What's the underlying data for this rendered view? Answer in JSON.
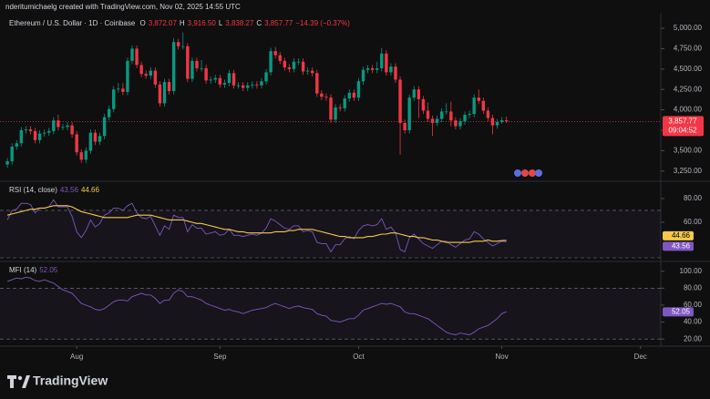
{
  "header": {
    "credit": "nderitumichaelg created with TradingView.com, Nov 02, 2025 14:55 UTC"
  },
  "branding": "TradingView",
  "chart_data": [
    {
      "type": "candlestick",
      "title": "Ethereum / U.S. Dollar · 1D · Coinbase",
      "ohlc_labels": [
        [
          "O",
          "3,872.07"
        ],
        [
          "H",
          "3,916.50"
        ],
        [
          "L",
          "3,838.27"
        ],
        [
          "C",
          "3,857.77"
        ]
      ],
      "change": "−14.39 (−0.37%)",
      "up_color": "#089981",
      "down_color": "#f23645",
      "open": [
        3330,
        3370,
        3550,
        3590,
        3750,
        3760,
        3740,
        3630,
        3710,
        3720,
        3740,
        3870,
        3790,
        3790,
        3810,
        3700,
        3480,
        3390,
        3500,
        3720,
        3610,
        3680,
        3910,
        4010,
        4250,
        4260,
        4220,
        4600,
        4750,
        4550,
        4440,
        4420,
        4480,
        4310,
        4080,
        4340,
        4230,
        4830,
        4780,
        4780,
        4380,
        4600,
        4510,
        4510,
        4360,
        4370,
        4390,
        4310,
        4330,
        4450,
        4300,
        4300,
        4270,
        4300,
        4310,
        4300,
        4350,
        4460,
        4720,
        4670,
        4600,
        4520,
        4500,
        4590,
        4590,
        4470,
        4480,
        4450,
        4200,
        4160,
        4150,
        3880,
        4030,
        4020,
        4140,
        4210,
        4150,
        4350,
        4490,
        4510,
        4490,
        4510,
        4690,
        4460,
        4530,
        4370,
        3840,
        3750,
        4150,
        4250,
        4130,
        3990,
        3890,
        3840,
        3890,
        3980,
        3980,
        3870,
        3800,
        3860,
        3940,
        3950,
        4150,
        4110,
        3990,
        3900,
        3810,
        3850,
        3872.07
      ],
      "high": [
        3410,
        3590,
        3630,
        3790,
        3800,
        3800,
        3780,
        3750,
        3760,
        3780,
        3910,
        3940,
        3830,
        3850,
        3850,
        3740,
        3520,
        3540,
        3760,
        3760,
        3720,
        3950,
        4050,
        4290,
        4330,
        4330,
        4640,
        4790,
        4790,
        4590,
        4480,
        4520,
        4520,
        4350,
        4380,
        4380,
        4880,
        4870,
        4950,
        4820,
        4640,
        4640,
        4610,
        4550,
        4410,
        4430,
        4430,
        4370,
        4490,
        4490,
        4340,
        4340,
        4340,
        4350,
        4350,
        4390,
        4500,
        4760,
        4770,
        4710,
        4640,
        4560,
        4630,
        4630,
        4630,
        4520,
        4520,
        4490,
        4240,
        4200,
        4190,
        4070,
        4070,
        4180,
        4250,
        4250,
        4390,
        4530,
        4550,
        4550,
        4590,
        4760,
        4730,
        4570,
        4570,
        4410,
        3880,
        4190,
        4290,
        4290,
        4170,
        4090,
        3930,
        3930,
        4020,
        4080,
        4100,
        3910,
        3900,
        3980,
        3990,
        4190,
        4250,
        4150,
        4030,
        3940,
        3890,
        3910,
        3916.5
      ],
      "low": [
        3290,
        3330,
        3510,
        3550,
        3710,
        3700,
        3590,
        3590,
        3670,
        3680,
        3700,
        3750,
        3750,
        3750,
        3660,
        3440,
        3350,
        3350,
        3460,
        3570,
        3570,
        3640,
        3870,
        3970,
        4210,
        4180,
        4180,
        4560,
        4510,
        4400,
        4380,
        4380,
        4270,
        4040,
        4040,
        4190,
        4190,
        4740,
        4740,
        4340,
        4340,
        4470,
        4470,
        4320,
        4320,
        4330,
        4270,
        4270,
        4290,
        4260,
        4260,
        4230,
        4230,
        4260,
        4260,
        4260,
        4310,
        4420,
        4630,
        4560,
        4480,
        4460,
        4460,
        4550,
        4430,
        4430,
        4410,
        4160,
        4120,
        4110,
        3840,
        3840,
        3980,
        3980,
        4100,
        4110,
        4110,
        4310,
        4450,
        4450,
        4450,
        4470,
        4420,
        4420,
        4330,
        3450,
        3710,
        3710,
        4110,
        3900,
        3950,
        3850,
        3680,
        3800,
        3850,
        3940,
        3800,
        3760,
        3760,
        3820,
        3900,
        3910,
        4070,
        3950,
        3860,
        3700,
        3770,
        3830,
        3838.27
      ],
      "close": [
        3370,
        3550,
        3590,
        3750,
        3760,
        3740,
        3630,
        3710,
        3720,
        3740,
        3870,
        3790,
        3790,
        3810,
        3700,
        3480,
        3390,
        3500,
        3720,
        3610,
        3680,
        3910,
        4010,
        4250,
        4260,
        4220,
        4600,
        4750,
        4550,
        4440,
        4420,
        4480,
        4310,
        4080,
        4340,
        4230,
        4830,
        4780,
        4780,
        4380,
        4600,
        4510,
        4510,
        4360,
        4370,
        4390,
        4310,
        4330,
        4450,
        4300,
        4300,
        4270,
        4300,
        4310,
        4300,
        4350,
        4460,
        4720,
        4670,
        4600,
        4520,
        4500,
        4590,
        4590,
        4470,
        4480,
        4450,
        4200,
        4160,
        4150,
        3880,
        4030,
        4020,
        4140,
        4210,
        4150,
        4350,
        4490,
        4510,
        4490,
        4510,
        4690,
        4460,
        4530,
        4370,
        3840,
        3750,
        4150,
        4250,
        4130,
        3990,
        3890,
        3840,
        3890,
        3980,
        3980,
        3870,
        3800,
        3860,
        3940,
        3950,
        4150,
        4110,
        3990,
        3900,
        3810,
        3850,
        3872,
        3857.77
      ],
      "last_label": "3,857.77",
      "countdown": "09:04:52",
      "xlim": [
        -1.6,
        141.4
      ],
      "ylim": [
        3136,
        5123
      ],
      "yticks": [
        {
          "value": 3250,
          "label": "3,250.00"
        },
        {
          "value": 3500,
          "label": "3,500.00"
        },
        {
          "value": 3750,
          "label": "3,750.00"
        },
        {
          "value": 4000,
          "label": "4,000.00"
        },
        {
          "value": 4250,
          "label": "4,250.00"
        },
        {
          "value": 4500,
          "label": "4,500.00"
        },
        {
          "value": 4750,
          "label": "4,750.00"
        },
        {
          "value": 5000,
          "label": "5,000.00"
        }
      ]
    },
    {
      "type": "line",
      "title": "RSI (14, close)",
      "series": [
        {
          "color": "#7e57c2",
          "values": [
            62,
            70,
            71,
            76,
            76,
            75,
            68,
            72,
            72,
            73,
            79,
            73,
            73,
            73,
            65,
            52,
            47,
            53,
            62,
            56,
            59,
            66,
            68,
            72,
            72,
            70,
            74,
            76,
            68,
            64,
            63,
            65,
            57,
            49,
            57,
            54,
            66,
            64,
            64,
            52,
            58,
            55,
            55,
            50,
            51,
            52,
            49,
            50,
            54,
            49,
            49,
            48,
            49,
            50,
            49,
            51,
            55,
            63,
            61,
            58,
            55,
            54,
            57,
            57,
            52,
            53,
            52,
            43,
            42,
            42,
            35,
            41,
            41,
            46,
            48,
            46,
            53,
            57,
            58,
            57,
            58,
            63,
            54,
            56,
            51,
            37,
            35,
            47,
            50,
            46,
            42,
            40,
            38,
            41,
            44,
            44,
            41,
            39,
            42,
            45,
            46,
            52,
            50,
            46,
            43,
            40,
            42,
            44,
            43.56
          ]
        },
        {
          "color": "#f7c948",
          "values": [
            66,
            67,
            68,
            69,
            70,
            71,
            71,
            72,
            72,
            73,
            74,
            74,
            74,
            74,
            73,
            71,
            69,
            68,
            67,
            66,
            65,
            64,
            64,
            64,
            64,
            64,
            64,
            65,
            66,
            66,
            66,
            66,
            65,
            64,
            63,
            62,
            62,
            62,
            62,
            61,
            60,
            59,
            59,
            58,
            57,
            56,
            55,
            54,
            54,
            53,
            52,
            52,
            51,
            51,
            51,
            51,
            51,
            51,
            52,
            52,
            52,
            53,
            53,
            54,
            54,
            54,
            54,
            53,
            52,
            51,
            50,
            49,
            48,
            48,
            47,
            47,
            47,
            47,
            48,
            48,
            49,
            50,
            50,
            51,
            51,
            50,
            49,
            48,
            48,
            47,
            47,
            46,
            45,
            45,
            44,
            43,
            43,
            43,
            43,
            43,
            43,
            44,
            44,
            44,
            45,
            44,
            44,
            44.5,
            44.66
          ]
        }
      ],
      "band": [
        30,
        70
      ],
      "xlim": [
        -1.6,
        141.4
      ],
      "ylim": [
        27.7,
        93.8
      ],
      "yticks": [
        {
          "value": 60,
          "label": "60.00"
        },
        {
          "value": 80,
          "label": "80.00"
        }
      ]
    },
    {
      "type": "line",
      "title": "MFI (14)",
      "series": [
        {
          "color": "#7e57c2",
          "values": [
            88,
            90,
            92,
            91,
            93,
            92,
            89,
            88,
            90,
            88,
            86,
            82,
            78,
            76,
            74,
            68,
            62,
            60,
            58,
            55,
            54,
            56,
            60,
            64,
            66,
            66,
            65,
            70,
            72,
            74,
            72,
            72,
            68,
            62,
            66,
            66,
            74,
            78,
            76,
            70,
            70,
            68,
            66,
            62,
            60,
            58,
            56,
            54,
            55,
            53,
            52,
            50,
            52,
            54,
            55,
            56,
            57,
            60,
            62,
            60,
            58,
            56,
            58,
            59,
            57,
            56,
            55,
            50,
            48,
            47,
            42,
            41,
            40,
            42,
            44,
            44,
            48,
            54,
            56,
            58,
            60,
            62,
            61,
            62,
            60,
            58,
            52,
            50,
            50,
            48,
            46,
            44,
            40,
            36,
            32,
            28,
            26,
            25,
            27,
            26,
            25,
            28,
            32,
            34,
            36,
            40,
            44,
            50,
            52.05
          ]
        }
      ],
      "band": [
        20,
        80
      ],
      "xlim": [
        -1.6,
        141.4
      ],
      "ylim": [
        13.7,
        110.5
      ],
      "yticks": [
        {
          "value": 20,
          "label": "20.00"
        },
        {
          "value": 40,
          "label": "40.00"
        },
        {
          "value": 60,
          "label": "60.00"
        },
        {
          "value": 80,
          "label": "80.00"
        },
        {
          "value": 100,
          "label": "100.00"
        }
      ],
      "xticks": [
        {
          "value": 15,
          "label": "Aug"
        },
        {
          "value": 46,
          "label": "Sep"
        },
        {
          "value": 76,
          "label": "Oct"
        },
        {
          "value": 107,
          "label": "Nov"
        },
        {
          "value": 137,
          "label": "Dec"
        }
      ]
    }
  ]
}
